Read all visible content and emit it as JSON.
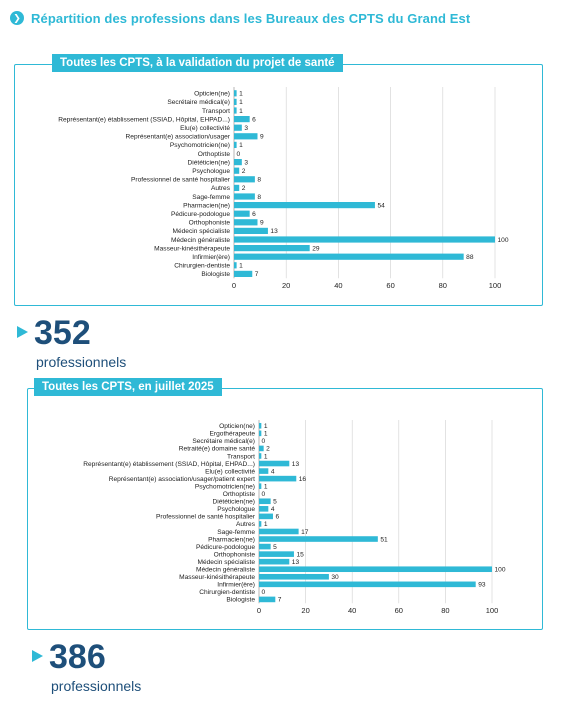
{
  "header": {
    "title": "Répartition des professions dans les Bureaux des CPTS du Grand Est",
    "accent_color": "#2fb9d6",
    "bullet_icon": "chevron-right-icon"
  },
  "panels": [
    {
      "tag": "Toutes les CPTS, à la validation du projet de santé",
      "total": {
        "number": "352",
        "label": "professionnels"
      }
    },
    {
      "tag": "Toutes les CPTS, en juillet 2025",
      "total": {
        "number": "386",
        "label": "professionnels"
      }
    }
  ],
  "chart_data": [
    {
      "type": "bar",
      "orientation": "horizontal",
      "title": "Toutes les CPTS, à la validation du projet de santé",
      "bar_color": "#2fb9d6",
      "grid": true,
      "xlim": [
        0,
        100
      ],
      "xticks": [
        0,
        20,
        40,
        60,
        80,
        100
      ],
      "categories": [
        "Opticien(ne)",
        "Secrétaire médical(e)",
        "Transport",
        "Représentant(e) établissement (SSIAD, Hôpital, EHPAD...)",
        "Elu(e) collectivité",
        "Représentant(e) association/usager",
        "Psychomotricien(ne)",
        "Orthoptiste",
        "Diététicien(ne)",
        "Psychologue",
        "Professionnel de santé hospitalier",
        "Autres",
        "Sage-femme",
        "Pharmacien(ne)",
        "Pédicure-podologue",
        "Orthophoniste",
        "Médecin spécialiste",
        "Médecin généraliste",
        "Masseur-kinésithérapeute",
        "Infirmier(ère)",
        "Chirurgien-dentiste",
        "Biologiste"
      ],
      "values": [
        1,
        1,
        1,
        6,
        3,
        9,
        1,
        0,
        3,
        2,
        8,
        2,
        8,
        54,
        6,
        9,
        13,
        100,
        29,
        88,
        1,
        7
      ]
    },
    {
      "type": "bar",
      "orientation": "horizontal",
      "title": "Toutes les CPTS, en juillet 2025",
      "bar_color": "#2fb9d6",
      "grid": true,
      "xlim": [
        0,
        100
      ],
      "xticks": [
        0,
        20,
        40,
        60,
        80,
        100
      ],
      "categories": [
        "Opticien(ne)",
        "Ergothérapeute",
        "Secrétaire médical(e)",
        "Retraité(e) domaine santé",
        "Transport",
        "Représentant(e) établissement (SSIAD, Hôpital, EHPAD...)",
        "Elu(e) collectivité",
        "Représentant(e) association/usager/patient expert",
        "Psychomotricien(ne)",
        "Orthoptiste",
        "Diététicien(ne)",
        "Psychologue",
        "Professionnel de santé hospitalier",
        "Autres",
        "Sage-femme",
        "Pharmacien(ne)",
        "Pédicure-podologue",
        "Orthophoniste",
        "Médecin spécialiste",
        "Médecin généraliste",
        "Masseur-kinésithérapeute",
        "Infirmier(ère)",
        "Chirurgien-dentiste",
        "Biologiste"
      ],
      "values": [
        1,
        1,
        0,
        2,
        1,
        13,
        4,
        16,
        1,
        0,
        5,
        4,
        6,
        1,
        17,
        51,
        5,
        15,
        13,
        100,
        30,
        93,
        0,
        7
      ]
    }
  ]
}
